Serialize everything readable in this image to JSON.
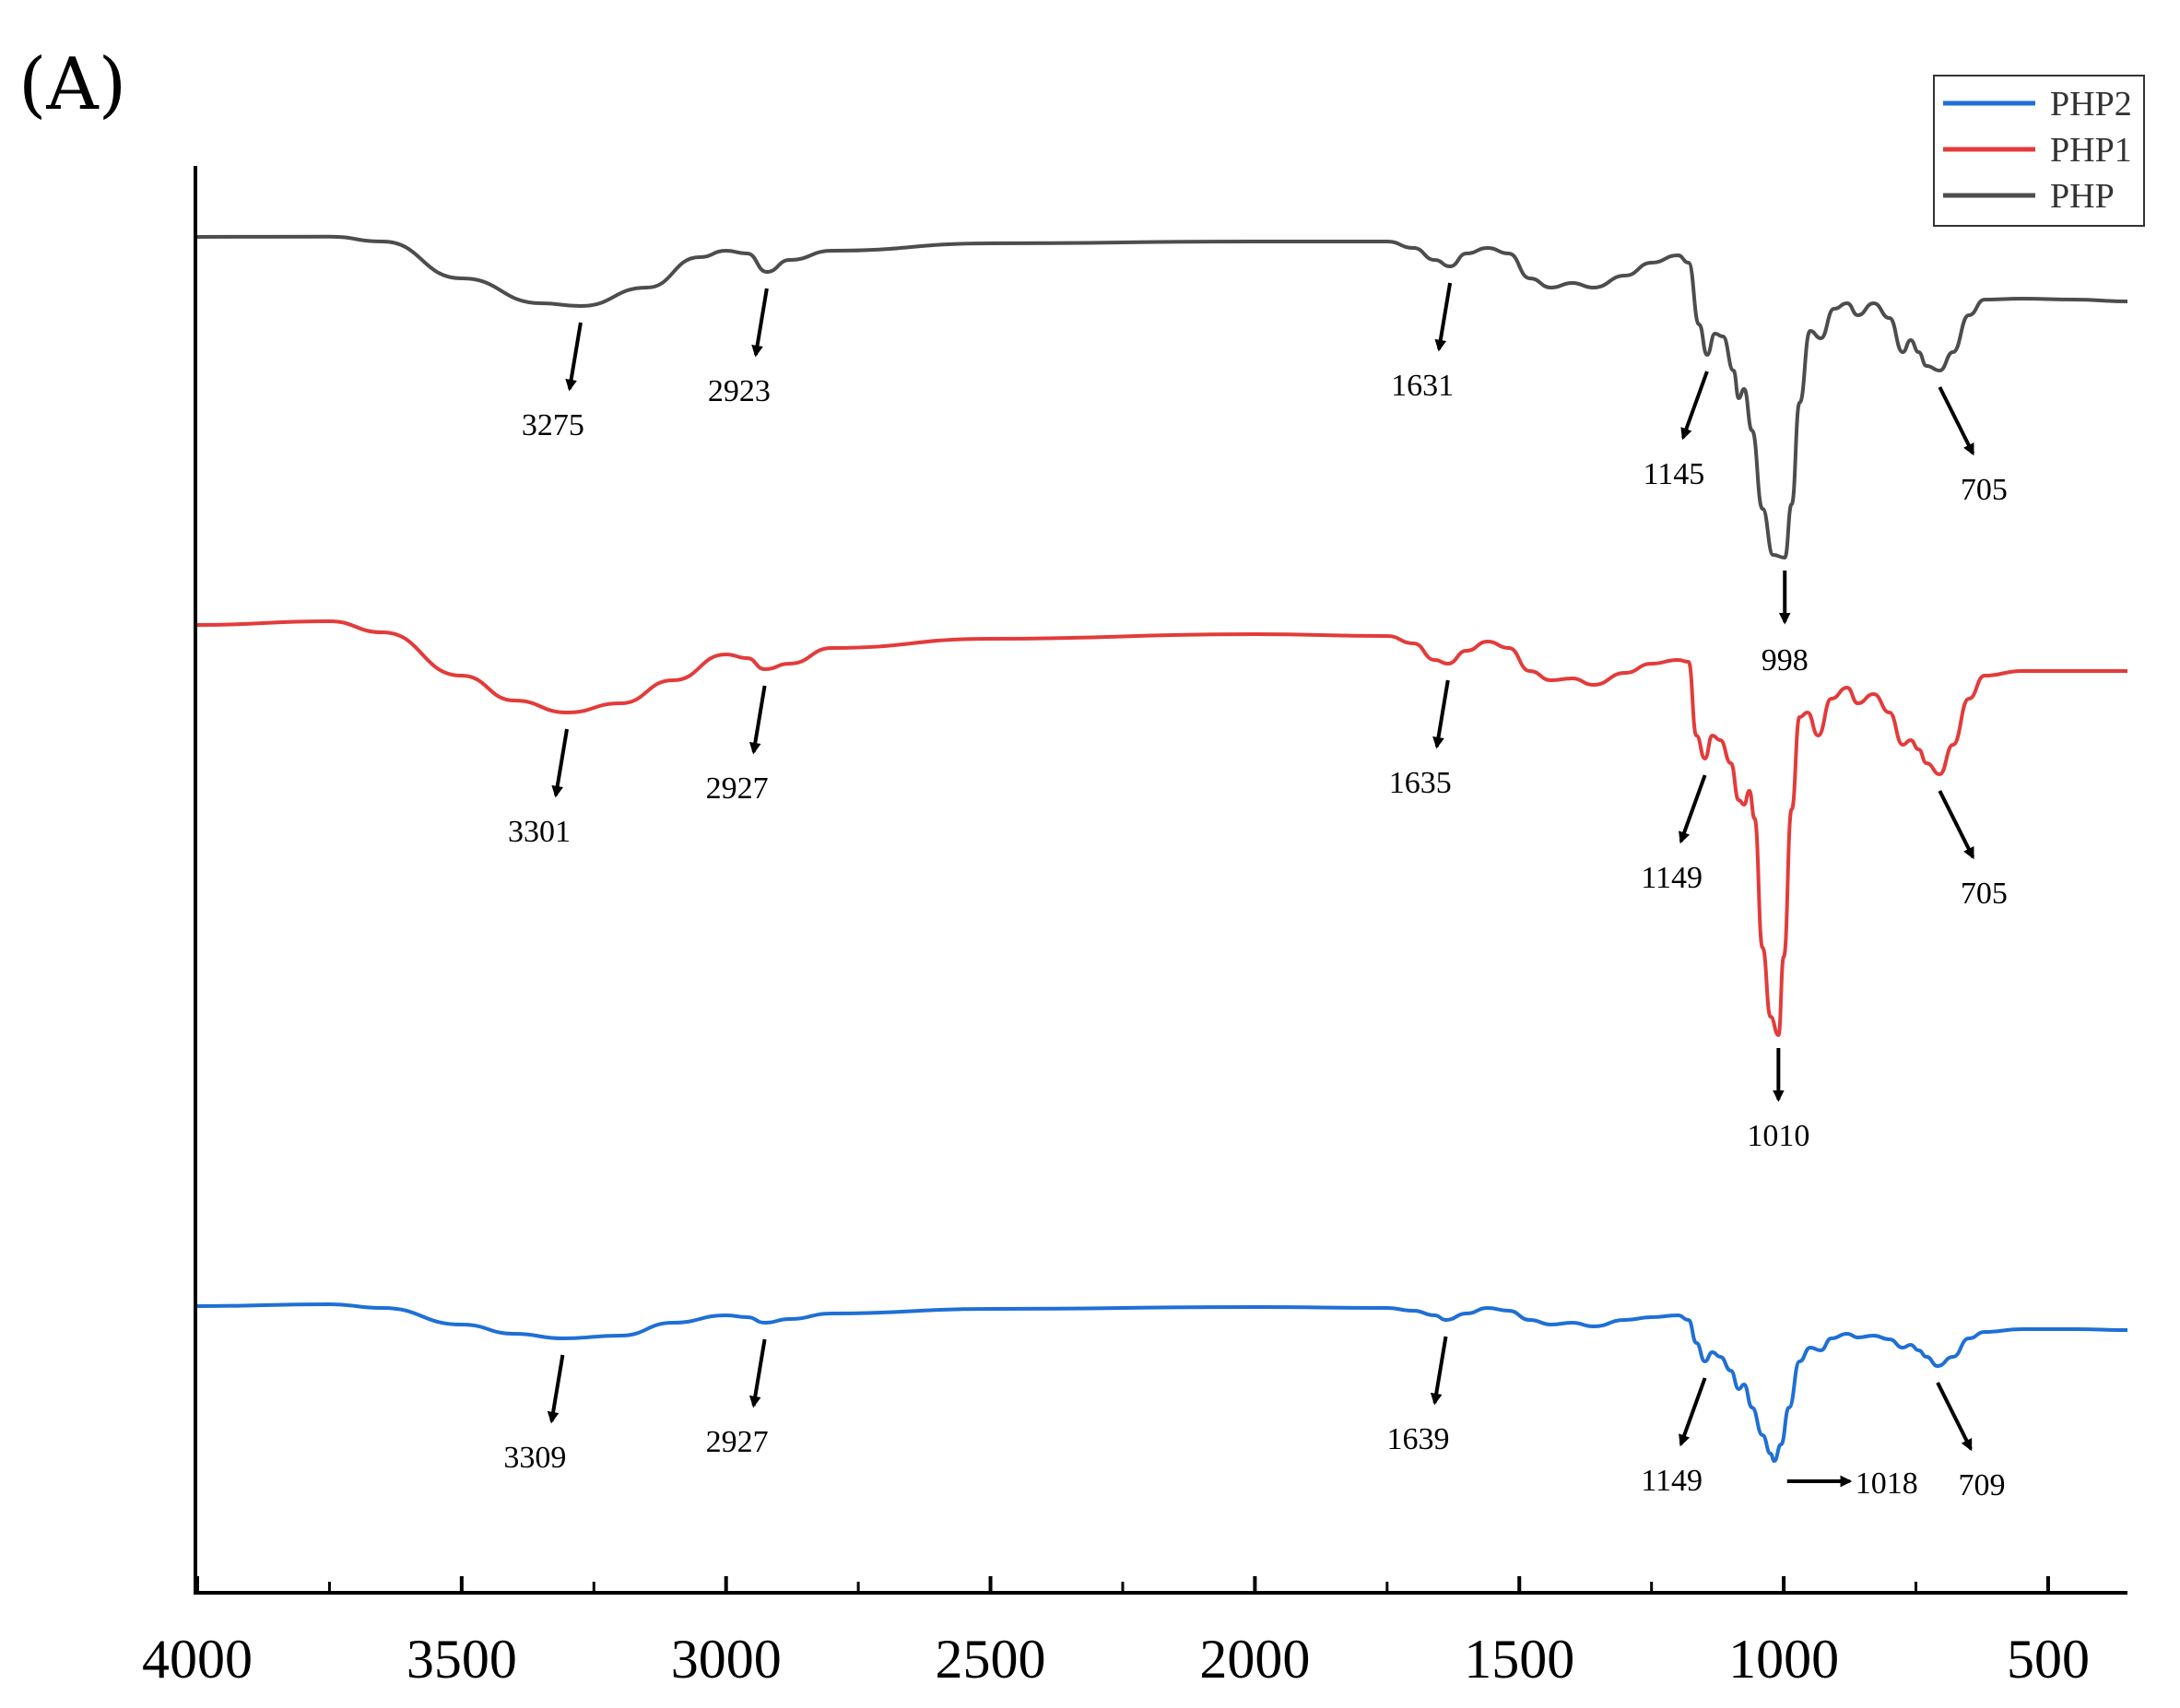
{
  "panel_label": "(A)",
  "chart_data": {
    "type": "line",
    "title": "",
    "xlabel": "",
    "ylabel": "",
    "x_reversed": true,
    "xlim": [
      4000,
      350
    ],
    "x_ticks": [
      4000,
      3500,
      3000,
      2500,
      2000,
      1500,
      1000,
      500
    ],
    "x_tick_labels": [
      "4000",
      "3500",
      "3000",
      "2500",
      "2000",
      "1500",
      "1000",
      "500"
    ],
    "y_axis_values_shown": false,
    "grid": false,
    "legend_position": "top-right",
    "legend": [
      {
        "name": "PHP2",
        "color": "#1f6fd6"
      },
      {
        "name": "PHP1",
        "color": "#e33b3b"
      },
      {
        "name": "PHP",
        "color": "#4d4d4d"
      }
    ],
    "series": [
      {
        "name": "PHP",
        "color": "#4d4d4d",
        "points": [
          [
            4000,
            0
          ],
          [
            3750,
            -0.3
          ],
          [
            3650,
            5
          ],
          [
            3500,
            45
          ],
          [
            3350,
            72
          ],
          [
            3275,
            75
          ],
          [
            3150,
            55
          ],
          [
            3050,
            22
          ],
          [
            3000,
            15
          ],
          [
            2960,
            18
          ],
          [
            2923,
            38
          ],
          [
            2880,
            25
          ],
          [
            2800,
            15
          ],
          [
            2500,
            7
          ],
          [
            2000,
            5
          ],
          [
            1750,
            5
          ],
          [
            1700,
            12
          ],
          [
            1660,
            25
          ],
          [
            1631,
            32
          ],
          [
            1600,
            18
          ],
          [
            1560,
            12
          ],
          [
            1520,
            18
          ],
          [
            1480,
            45
          ],
          [
            1440,
            55
          ],
          [
            1400,
            50
          ],
          [
            1360,
            55
          ],
          [
            1300,
            42
          ],
          [
            1250,
            28
          ],
          [
            1200,
            20
          ],
          [
            1180,
            28
          ],
          [
            1160,
            95
          ],
          [
            1145,
            128
          ],
          [
            1130,
            105
          ],
          [
            1115,
            108
          ],
          [
            1095,
            145
          ],
          [
            1085,
            175
          ],
          [
            1075,
            165
          ],
          [
            1060,
            210
          ],
          [
            1040,
            295
          ],
          [
            1020,
            345
          ],
          [
            998,
            348
          ],
          [
            985,
            290
          ],
          [
            970,
            180
          ],
          [
            950,
            102
          ],
          [
            930,
            110
          ],
          [
            905,
            78
          ],
          [
            880,
            72
          ],
          [
            860,
            85
          ],
          [
            830,
            72
          ],
          [
            800,
            88
          ],
          [
            775,
            125
          ],
          [
            760,
            112
          ],
          [
            745,
            125
          ],
          [
            730,
            140
          ],
          [
            705,
            145
          ],
          [
            680,
            125
          ],
          [
            650,
            85
          ],
          [
            620,
            68
          ],
          [
            550,
            67
          ],
          [
            450,
            68
          ],
          [
            350,
            70
          ]
        ]
      },
      {
        "name": "PHP1",
        "color": "#e33b3b",
        "points": [
          [
            4000,
            0
          ],
          [
            3750,
            -4
          ],
          [
            3650,
            8
          ],
          [
            3500,
            55
          ],
          [
            3400,
            82
          ],
          [
            3301,
            95
          ],
          [
            3200,
            85
          ],
          [
            3100,
            60
          ],
          [
            3000,
            32
          ],
          [
            2960,
            36
          ],
          [
            2927,
            48
          ],
          [
            2880,
            42
          ],
          [
            2800,
            25
          ],
          [
            2500,
            15
          ],
          [
            2000,
            10
          ],
          [
            1750,
            12
          ],
          [
            1700,
            20
          ],
          [
            1660,
            38
          ],
          [
            1635,
            42
          ],
          [
            1600,
            28
          ],
          [
            1560,
            18
          ],
          [
            1520,
            25
          ],
          [
            1480,
            50
          ],
          [
            1440,
            60
          ],
          [
            1400,
            58
          ],
          [
            1360,
            65
          ],
          [
            1300,
            52
          ],
          [
            1250,
            42
          ],
          [
            1200,
            38
          ],
          [
            1180,
            40
          ],
          [
            1165,
            120
          ],
          [
            1149,
            145
          ],
          [
            1135,
            120
          ],
          [
            1120,
            125
          ],
          [
            1100,
            150
          ],
          [
            1085,
            190
          ],
          [
            1075,
            195
          ],
          [
            1065,
            180
          ],
          [
            1055,
            210
          ],
          [
            1040,
            350
          ],
          [
            1025,
            425
          ],
          [
            1010,
            445
          ],
          [
            1000,
            360
          ],
          [
            985,
            200
          ],
          [
            970,
            100
          ],
          [
            955,
            95
          ],
          [
            935,
            120
          ],
          [
            910,
            80
          ],
          [
            880,
            68
          ],
          [
            860,
            85
          ],
          [
            830,
            75
          ],
          [
            800,
            95
          ],
          [
            775,
            130
          ],
          [
            760,
            125
          ],
          [
            745,
            135
          ],
          [
            730,
            150
          ],
          [
            705,
            162
          ],
          [
            680,
            130
          ],
          [
            650,
            80
          ],
          [
            620,
            55
          ],
          [
            550,
            50
          ],
          [
            450,
            50
          ],
          [
            350,
            50
          ]
        ]
      },
      {
        "name": "PHP2",
        "color": "#1f6fd6",
        "points": [
          [
            4000,
            0
          ],
          [
            3750,
            -2
          ],
          [
            3650,
            2
          ],
          [
            3500,
            20
          ],
          [
            3400,
            30
          ],
          [
            3309,
            35
          ],
          [
            3200,
            32
          ],
          [
            3100,
            18
          ],
          [
            3000,
            10
          ],
          [
            2960,
            12
          ],
          [
            2927,
            18
          ],
          [
            2880,
            14
          ],
          [
            2800,
            8
          ],
          [
            2500,
            3
          ],
          [
            2000,
            1
          ],
          [
            1750,
            2
          ],
          [
            1700,
            5
          ],
          [
            1660,
            10
          ],
          [
            1639,
            15
          ],
          [
            1600,
            8
          ],
          [
            1560,
            2
          ],
          [
            1520,
            5
          ],
          [
            1480,
            15
          ],
          [
            1440,
            20
          ],
          [
            1400,
            18
          ],
          [
            1360,
            22
          ],
          [
            1300,
            15
          ],
          [
            1250,
            12
          ],
          [
            1200,
            10
          ],
          [
            1180,
            15
          ],
          [
            1165,
            40
          ],
          [
            1149,
            60
          ],
          [
            1135,
            50
          ],
          [
            1120,
            55
          ],
          [
            1100,
            70
          ],
          [
            1085,
            90
          ],
          [
            1075,
            85
          ],
          [
            1060,
            110
          ],
          [
            1040,
            140
          ],
          [
            1025,
            160
          ],
          [
            1018,
            168
          ],
          [
            1005,
            150
          ],
          [
            990,
            110
          ],
          [
            970,
            60
          ],
          [
            950,
            45
          ],
          [
            930,
            48
          ],
          [
            910,
            35
          ],
          [
            880,
            30
          ],
          [
            860,
            34
          ],
          [
            830,
            32
          ],
          [
            800,
            36
          ],
          [
            775,
            45
          ],
          [
            760,
            42
          ],
          [
            745,
            48
          ],
          [
            730,
            55
          ],
          [
            709,
            65
          ],
          [
            680,
            55
          ],
          [
            650,
            35
          ],
          [
            620,
            28
          ],
          [
            550,
            25
          ],
          [
            450,
            25
          ],
          [
            350,
            26
          ]
        ]
      }
    ],
    "annotations": [
      {
        "series": "PHP",
        "label": "3275",
        "x": 3275
      },
      {
        "series": "PHP",
        "label": "2923",
        "x": 2923
      },
      {
        "series": "PHP",
        "label": "1631",
        "x": 1631
      },
      {
        "series": "PHP",
        "label": "1145",
        "x": 1145
      },
      {
        "series": "PHP",
        "label": "998",
        "x": 998
      },
      {
        "series": "PHP",
        "label": "705",
        "x": 705
      },
      {
        "series": "PHP1",
        "label": "3301",
        "x": 3301
      },
      {
        "series": "PHP1",
        "label": "2927",
        "x": 2927
      },
      {
        "series": "PHP1",
        "label": "1635",
        "x": 1635
      },
      {
        "series": "PHP1",
        "label": "1149",
        "x": 1149
      },
      {
        "series": "PHP1",
        "label": "1010",
        "x": 1010
      },
      {
        "series": "PHP1",
        "label": "705",
        "x": 705
      },
      {
        "series": "PHP2",
        "label": "3309",
        "x": 3309
      },
      {
        "series": "PHP2",
        "label": "2927",
        "x": 2927
      },
      {
        "series": "PHP2",
        "label": "1639",
        "x": 1639
      },
      {
        "series": "PHP2",
        "label": "1149",
        "x": 1149
      },
      {
        "series": "PHP2",
        "label": "1018",
        "x": 1018
      },
      {
        "series": "PHP2",
        "label": "709",
        "x": 709
      }
    ]
  }
}
